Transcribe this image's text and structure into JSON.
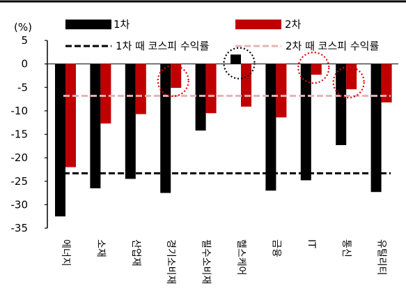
{
  "chart_data": {
    "type": "bar",
    "unit_label": "(%)",
    "categories": [
      "에너지",
      "소재",
      "산업재",
      "경기소비재",
      "필수소비재",
      "헬스케어",
      "금융",
      "IT",
      "통신",
      "유틸리티"
    ],
    "series": [
      {
        "name": "1차",
        "color": "#000000",
        "values": [
          -32.5,
          -26.5,
          -24.5,
          -27.5,
          -14.2,
          2.0,
          -27.0,
          -24.8,
          -17.3,
          -27.3
        ]
      },
      {
        "name": "2차",
        "color": "#c00000",
        "values": [
          -22.0,
          -12.7,
          -10.7,
          -5.1,
          -10.5,
          -9.1,
          -11.4,
          -2.3,
          -5.4,
          -8.2
        ]
      }
    ],
    "reference_lines": [
      {
        "name": "1차 때 코스피 수익률",
        "value": -23.3,
        "color": "#000000",
        "style": "dashed"
      },
      {
        "name": "2차 때 코스피 수익률",
        "value": -6.8,
        "color": "#e6b3b3",
        "style": "dashed"
      }
    ],
    "highlights": [
      {
        "category": "경기소비재",
        "series": "2차",
        "color": "#e00000"
      },
      {
        "category": "헬스케어",
        "series": "1차",
        "color": "#000000"
      },
      {
        "category": "IT",
        "series": "2차",
        "color": "#e00000"
      },
      {
        "category": "통신",
        "series": "2차",
        "color": "#e00000"
      }
    ],
    "ylim": [
      -35,
      5
    ],
    "yticks": [
      5,
      0,
      -5,
      -10,
      -15,
      -20,
      -25,
      -30,
      -35
    ],
    "grid": false,
    "legend_position": "top"
  }
}
